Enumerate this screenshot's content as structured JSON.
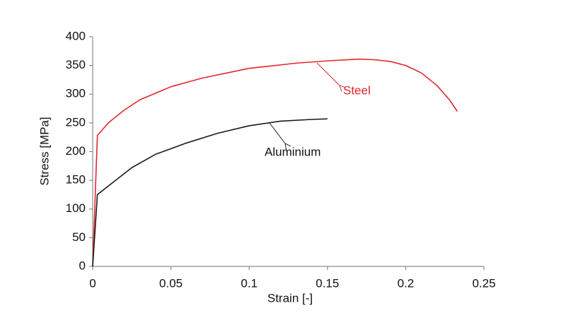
{
  "chart_data": {
    "type": "line",
    "xlabel": "Strain [-]",
    "ylabel": "Stress [MPa]",
    "xlim": [
      0,
      0.25
    ],
    "xticks": [
      0,
      0.05,
      0.1,
      0.15,
      0.2,
      0.25
    ],
    "ylim": [
      0,
      400
    ],
    "yticks": [
      0,
      50,
      100,
      150,
      200,
      250,
      300,
      350,
      400
    ],
    "grid": false,
    "series": [
      {
        "name": "Steel",
        "color": "#e3262b",
        "x": [
          0,
          0.003,
          0.01,
          0.02,
          0.03,
          0.05,
          0.07,
          0.1,
          0.13,
          0.15,
          0.17,
          0.18,
          0.19,
          0.2,
          0.21,
          0.22,
          0.228,
          0.233
        ],
        "values": [
          0,
          228,
          250,
          272,
          290,
          313,
          328,
          345,
          354,
          358,
          361,
          360,
          357,
          350,
          337,
          315,
          290,
          270
        ]
      },
      {
        "name": "Aluminium",
        "color": "#1a1a1a",
        "x": [
          0,
          0.003,
          0.01,
          0.025,
          0.04,
          0.06,
          0.08,
          0.1,
          0.12,
          0.14,
          0.15
        ],
        "values": [
          0,
          125,
          140,
          172,
          195,
          215,
          232,
          245,
          253,
          256,
          257
        ]
      }
    ]
  }
}
